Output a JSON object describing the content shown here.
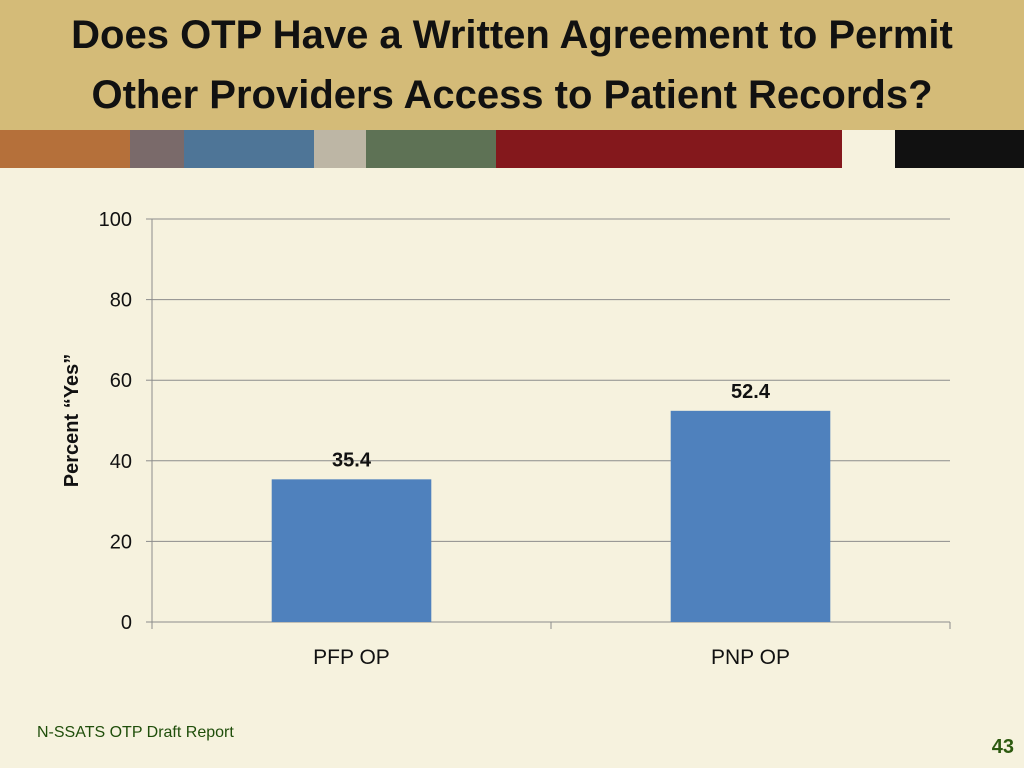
{
  "slide": {
    "title_line1": "Does OTP Have a Written Agreement to Permit",
    "title_line2": "Other Providers Access to Patient Records?",
    "footer": "N-SSATS OTP Draft Report",
    "page_number": "43"
  },
  "colors": {
    "background": "#f6f2de",
    "title_band": "#d4bb78",
    "bar": "#4f81bd",
    "stripes": [
      "#b5703a",
      "#7a6a6a",
      "#4e7597",
      "#bdb6a5",
      "#5e7255",
      "#84181c",
      "#f6f2de",
      "#111111"
    ]
  },
  "chart_data": {
    "type": "bar",
    "categories": [
      "PFP OP",
      "PNP OP"
    ],
    "values": [
      35.4,
      52.4
    ],
    "data_labels": [
      "35.4",
      "52.4"
    ],
    "ylabel": "Percent “Yes”",
    "xlabel": "",
    "ylim": [
      0,
      100
    ],
    "yticks": [
      0,
      20,
      40,
      60,
      80,
      100
    ],
    "ytick_labels": [
      "0",
      "20",
      "40",
      "60",
      "80",
      "100"
    ],
    "grid": true,
    "legend": "none"
  }
}
